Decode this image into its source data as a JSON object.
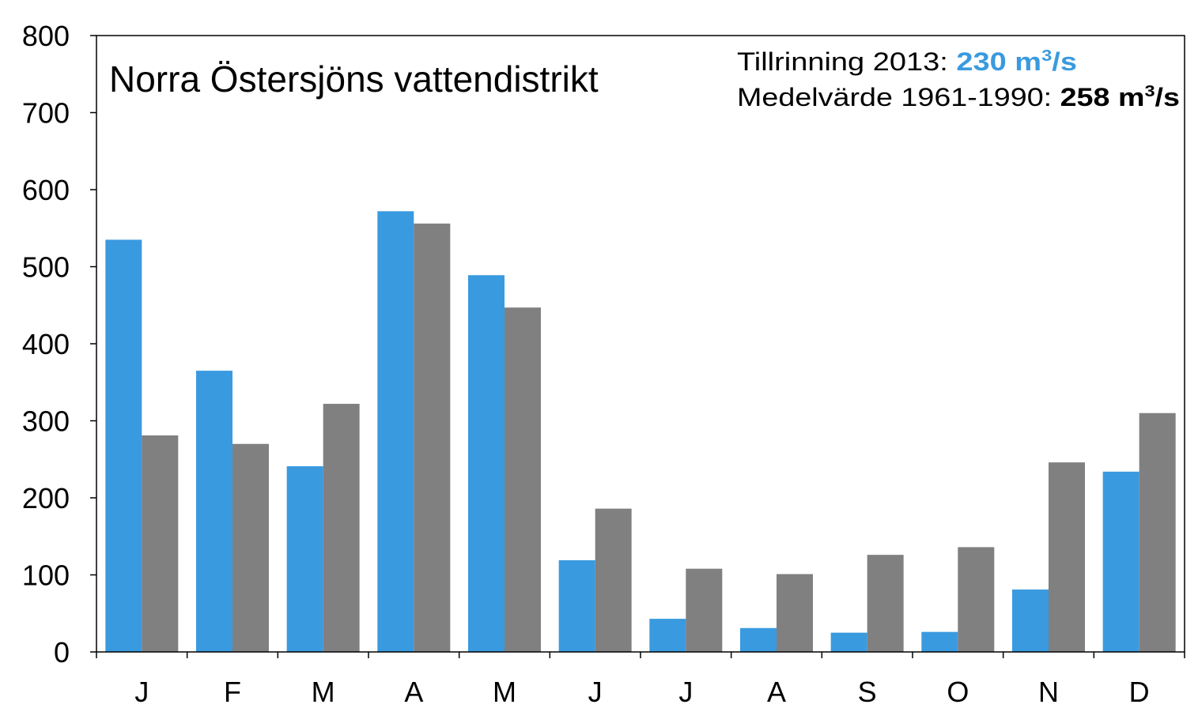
{
  "chart_data": {
    "type": "bar",
    "title": "Norra Östersjöns vattendistrikt",
    "categories": [
      "J",
      "F",
      "M",
      "A",
      "M",
      "J",
      "J",
      "A",
      "S",
      "O",
      "N",
      "D"
    ],
    "series": [
      {
        "values": [
          535,
          365,
          241,
          572,
          489,
          119,
          43,
          31,
          25,
          26,
          81,
          234
        ],
        "color": "#3A9ADF"
      },
      {
        "values": [
          281,
          270,
          322,
          556,
          447,
          186,
          108,
          101,
          126,
          136,
          246,
          310
        ],
        "color": "#808080"
      }
    ],
    "ylim": [
      0,
      800
    ],
    "yticks": [
      "0",
      "100",
      "200",
      "300",
      "400",
      "500",
      "600",
      "700",
      "800"
    ],
    "xlabel": "",
    "ylabel": "",
    "grid": false,
    "legend": "none",
    "annotations": {
      "line1_label": "Tillrinning 2013: ",
      "line1_value": "230 m",
      "line1_sup": "3",
      "line1_unit": "/s",
      "line2_label": "Medelvärde 1961-1990: ",
      "line2_value": "258 m",
      "line2_sup": "3",
      "line2_unit": "/s"
    }
  }
}
